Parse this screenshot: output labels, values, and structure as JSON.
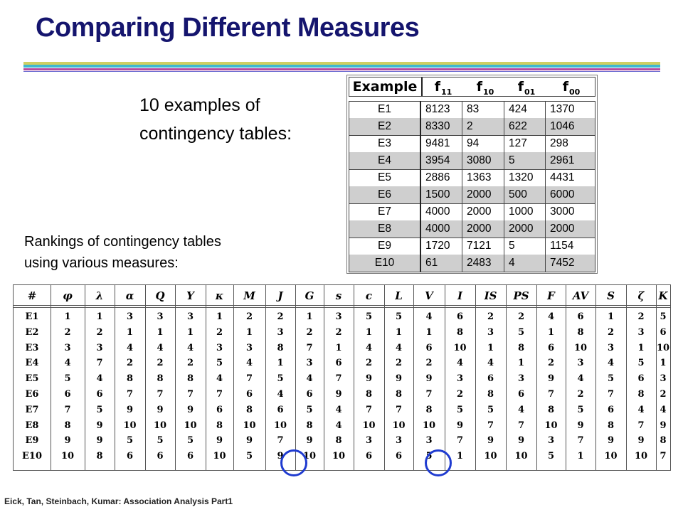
{
  "title": "Comparing Different Measures",
  "intro": [
    "10 examples of",
    "contingency tables:"
  ],
  "rankings_caption": [
    "Rankings of contingency tables",
    "using various measures:"
  ],
  "footer": "Eick, Tan, Steinbach, Kumar: Association Analysis Part1",
  "contingency": {
    "headers": [
      {
        "label": "Example",
        "sub": ""
      },
      {
        "label": "f",
        "sub": "11"
      },
      {
        "label": "f",
        "sub": "10"
      },
      {
        "label": "f",
        "sub": "01"
      },
      {
        "label": "f",
        "sub": "00"
      }
    ],
    "rows": [
      [
        "E1",
        "8123",
        "83",
        "424",
        "1370"
      ],
      [
        "E2",
        "8330",
        "2",
        "622",
        "1046"
      ],
      [
        "E3",
        "9481",
        "94",
        "127",
        "298"
      ],
      [
        "E4",
        "3954",
        "3080",
        "5",
        "2961"
      ],
      [
        "E5",
        "2886",
        "1363",
        "1320",
        "4431"
      ],
      [
        "E6",
        "1500",
        "2000",
        "500",
        "6000"
      ],
      [
        "E7",
        "4000",
        "2000",
        "1000",
        "3000"
      ],
      [
        "E8",
        "4000",
        "2000",
        "2000",
        "2000"
      ],
      [
        "E9",
        "1720",
        "7121",
        "5",
        "1154"
      ],
      [
        "E10",
        "61",
        "2483",
        "4",
        "7452"
      ]
    ]
  },
  "rankings": {
    "headers": [
      "#",
      "φ",
      "λ",
      "α",
      "Q",
      "Y",
      "κ",
      "M",
      "J",
      "G",
      "s",
      "c",
      "L",
      "V",
      "I",
      "IS",
      "PS",
      "F",
      "AV",
      "S",
      "ζ",
      "K"
    ],
    "rows": [
      [
        "E1",
        "1",
        "1",
        "3",
        "3",
        "3",
        "1",
        "2",
        "2",
        "1",
        "3",
        "5",
        "5",
        "4",
        "6",
        "2",
        "2",
        "4",
        "6",
        "1",
        "2",
        "5"
      ],
      [
        "E2",
        "2",
        "2",
        "1",
        "1",
        "1",
        "2",
        "1",
        "3",
        "2",
        "2",
        "1",
        "1",
        "1",
        "8",
        "3",
        "5",
        "1",
        "8",
        "2",
        "3",
        "6"
      ],
      [
        "E3",
        "3",
        "3",
        "4",
        "4",
        "4",
        "3",
        "3",
        "8",
        "7",
        "1",
        "4",
        "4",
        "6",
        "10",
        "1",
        "8",
        "6",
        "10",
        "3",
        "1",
        "10"
      ],
      [
        "E4",
        "4",
        "7",
        "2",
        "2",
        "2",
        "5",
        "4",
        "1",
        "3",
        "6",
        "2",
        "2",
        "2",
        "4",
        "4",
        "1",
        "2",
        "3",
        "4",
        "5",
        "1"
      ],
      [
        "E5",
        "5",
        "4",
        "8",
        "8",
        "8",
        "4",
        "7",
        "5",
        "4",
        "7",
        "9",
        "9",
        "9",
        "3",
        "6",
        "3",
        "9",
        "4",
        "5",
        "6",
        "3"
      ],
      [
        "E6",
        "6",
        "6",
        "7",
        "7",
        "7",
        "7",
        "6",
        "4",
        "6",
        "9",
        "8",
        "8",
        "7",
        "2",
        "8",
        "6",
        "7",
        "2",
        "7",
        "8",
        "2"
      ],
      [
        "E7",
        "7",
        "5",
        "9",
        "9",
        "9",
        "6",
        "8",
        "6",
        "5",
        "4",
        "7",
        "7",
        "8",
        "5",
        "5",
        "4",
        "8",
        "5",
        "6",
        "4",
        "4"
      ],
      [
        "E8",
        "8",
        "9",
        "10",
        "10",
        "10",
        "8",
        "10",
        "10",
        "8",
        "4",
        "10",
        "10",
        "10",
        "9",
        "7",
        "7",
        "10",
        "9",
        "8",
        "7",
        "9"
      ],
      [
        "E9",
        "9",
        "9",
        "5",
        "5",
        "5",
        "9",
        "9",
        "7",
        "9",
        "8",
        "3",
        "3",
        "3",
        "7",
        "9",
        "9",
        "3",
        "7",
        "9",
        "9",
        "8"
      ],
      [
        "E10",
        "10",
        "8",
        "6",
        "6",
        "6",
        "10",
        "5",
        "9",
        "10",
        "10",
        "6",
        "6",
        "5",
        "1",
        "10",
        "10",
        "5",
        "1",
        "10",
        "10",
        "7"
      ]
    ]
  },
  "highlight_color": "#1f3bd0",
  "title_color": "#15156e"
}
